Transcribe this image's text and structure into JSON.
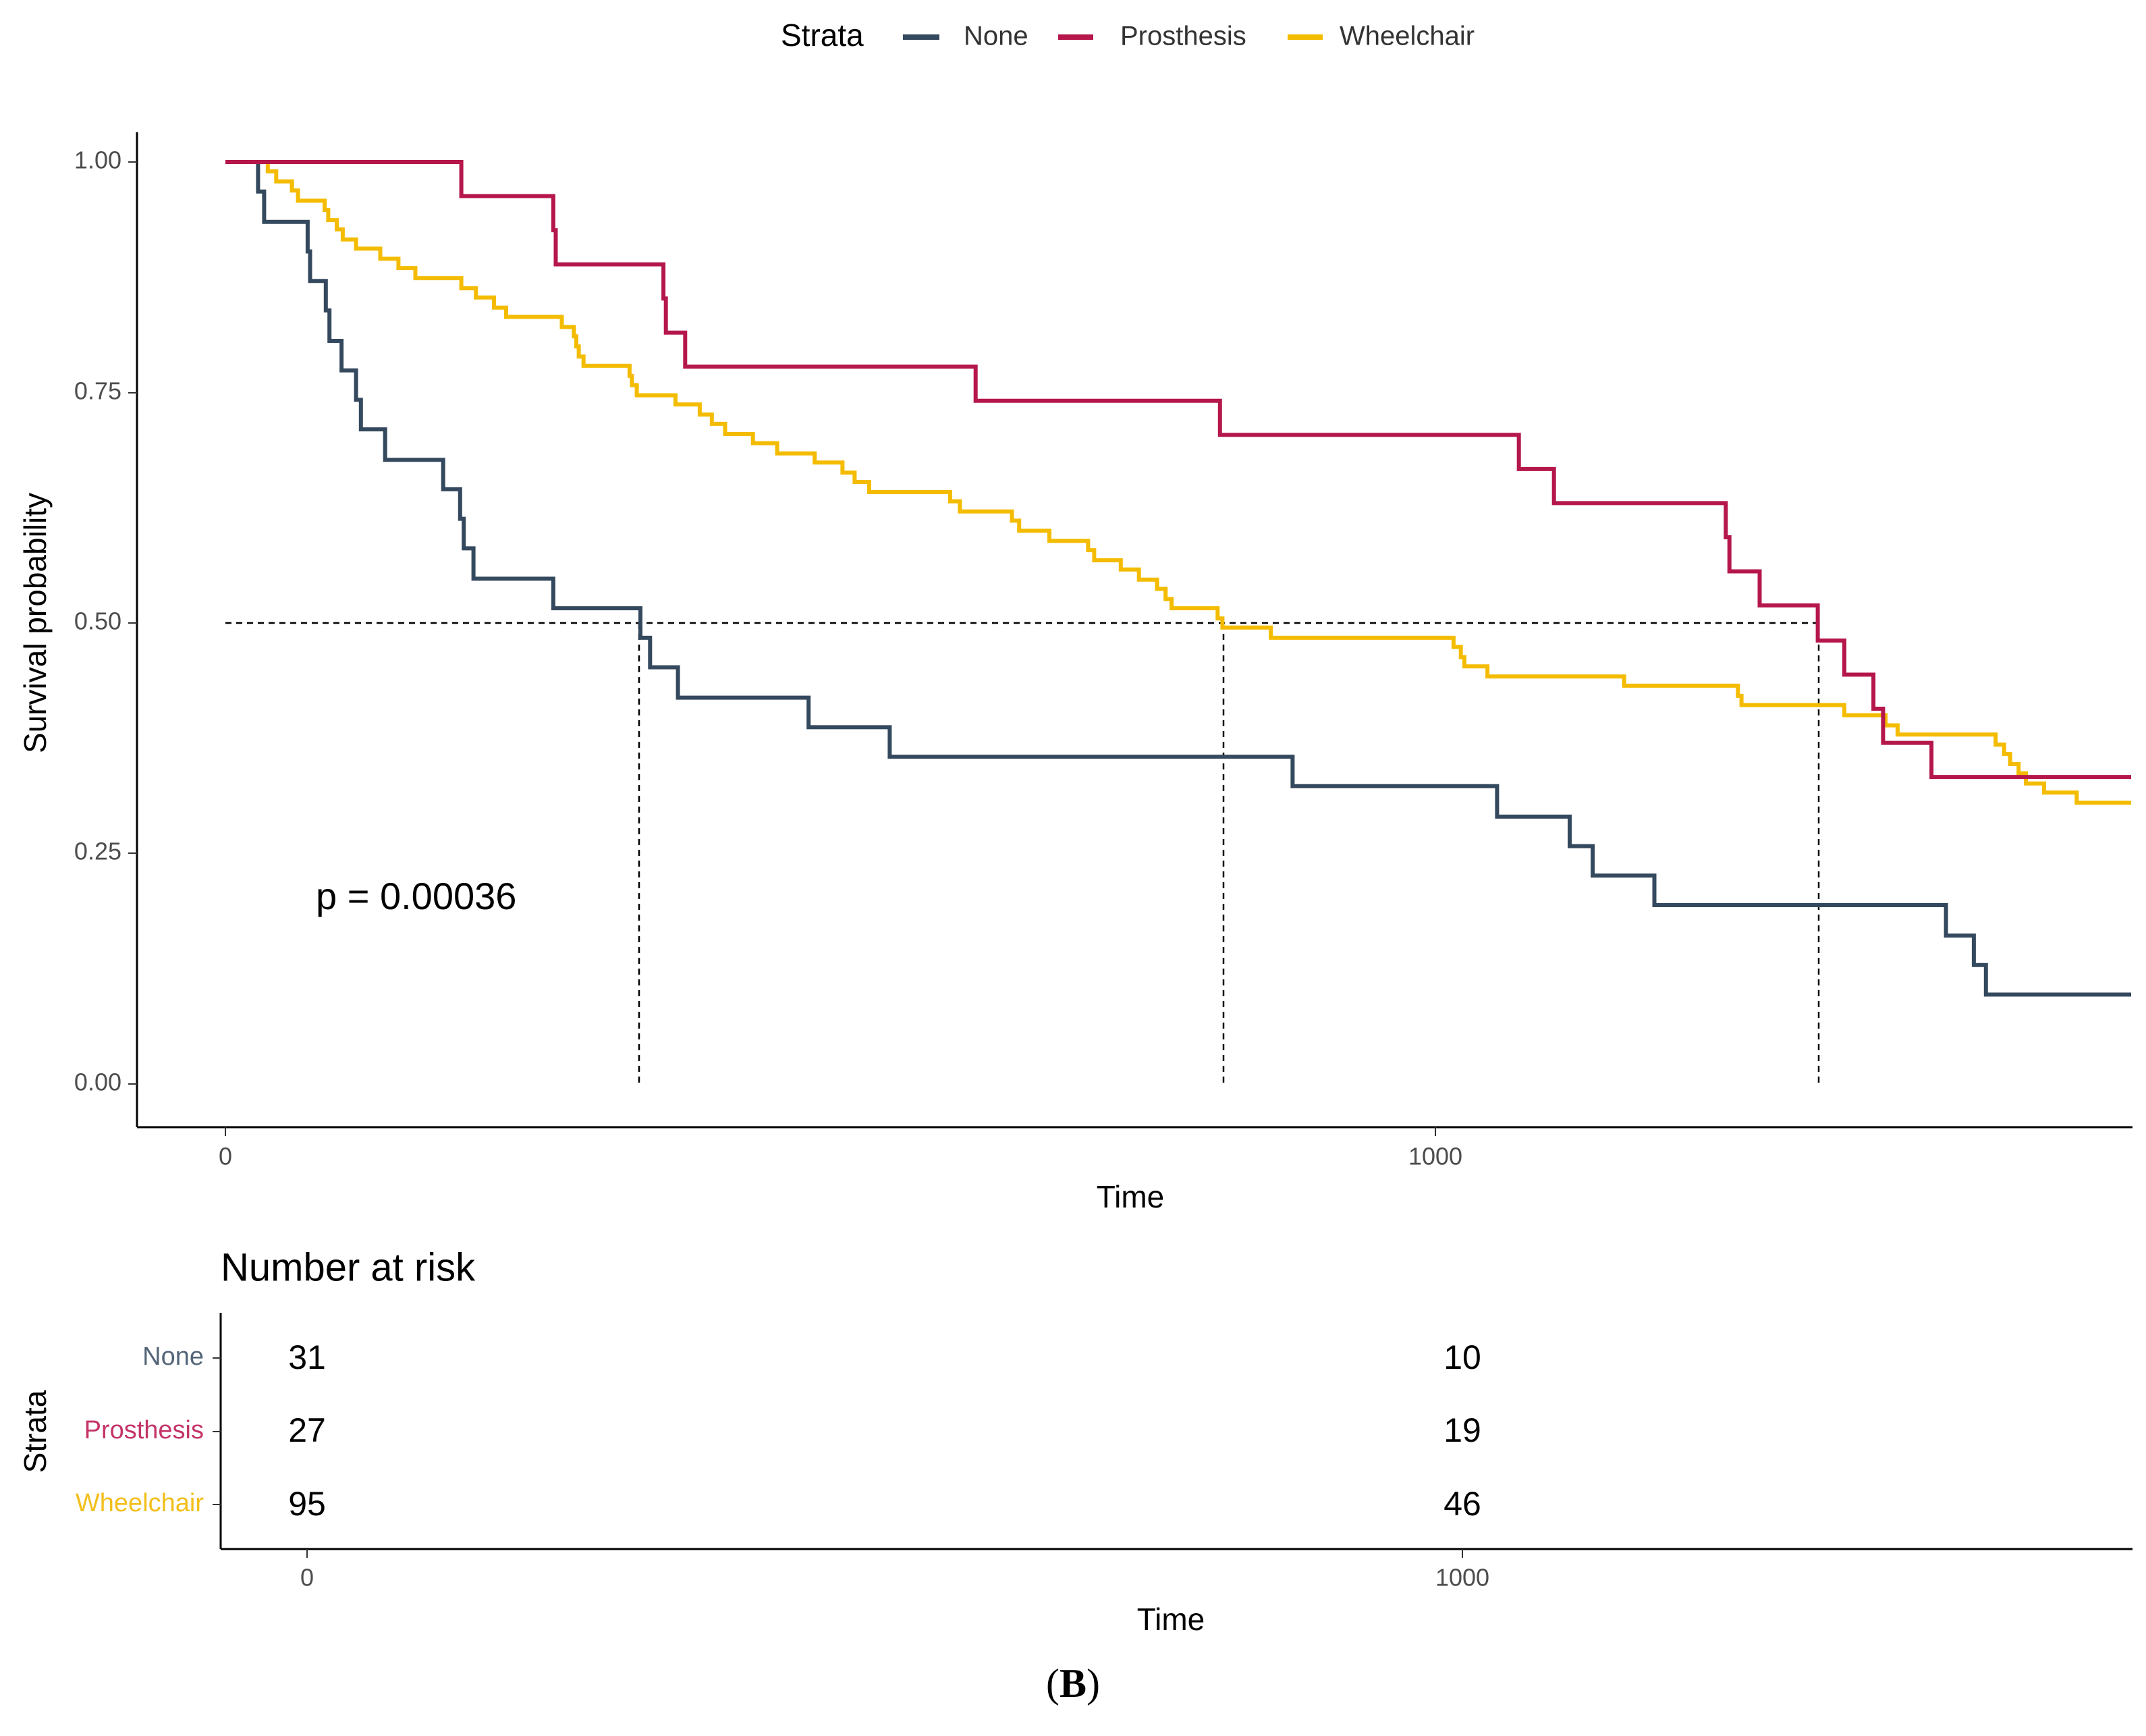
{
  "chart_data": [
    {
      "type": "line",
      "subtype": "kaplan-meier-step",
      "xlabel": "Time",
      "ylabel": "Survival probability",
      "xlim": [
        -75,
        1575
      ],
      "ylim": [
        -0.045,
        1.045
      ],
      "x_ticks": [
        0,
        1000
      ],
      "x_tick_labels": [
        "0",
        "1000"
      ],
      "y_ticks": [
        0,
        0.25,
        0.5,
        0.75,
        1.0
      ],
      "y_tick_labels": [
        "0.00",
        "0.25",
        "0.50",
        "0.75",
        "1.00"
      ],
      "legend": {
        "title": "Strata",
        "position": "top",
        "items": [
          {
            "label": "None",
            "color": "#34495e"
          },
          {
            "label": "Prosthesis",
            "color": "#b5174b"
          },
          {
            "label": "Wheelchair",
            "color": "#f4bc00"
          }
        ]
      },
      "annotation": "p = 0.00036",
      "annotation_at": [
        75,
        0.2
      ],
      "median_survival": {
        "y": 0.5,
        "x": [
          342,
          825,
          1317
        ]
      },
      "series": [
        {
          "name": "None",
          "color": "#34495e",
          "points": [
            [
              0,
              1
            ],
            [
              27,
              1
            ],
            [
              27,
              0.968
            ],
            [
              32,
              0.968
            ],
            [
              32,
              0.935
            ],
            [
              68,
              0.935
            ],
            [
              68,
              0.903
            ],
            [
              70,
              0.903
            ],
            [
              70,
              0.871
            ],
            [
              83,
              0.871
            ],
            [
              83,
              0.839
            ],
            [
              86,
              0.839
            ],
            [
              86,
              0.806
            ],
            [
              96,
              0.806
            ],
            [
              96,
              0.774
            ],
            [
              108,
              0.774
            ],
            [
              108,
              0.742
            ],
            [
              112,
              0.742
            ],
            [
              112,
              0.71
            ],
            [
              132,
              0.71
            ],
            [
              132,
              0.677
            ],
            [
              180,
              0.677
            ],
            [
              180,
              0.645
            ],
            [
              194,
              0.645
            ],
            [
              194,
              0.613
            ],
            [
              197,
              0.613
            ],
            [
              197,
              0.581
            ],
            [
              205,
              0.581
            ],
            [
              205,
              0.548
            ],
            [
              271,
              0.548
            ],
            [
              271,
              0.516
            ],
            [
              343,
              0.516
            ],
            [
              343,
              0.484
            ],
            [
              351,
              0.484
            ],
            [
              351,
              0.452
            ],
            [
              374,
              0.452
            ],
            [
              374,
              0.419
            ],
            [
              482,
              0.419
            ],
            [
              482,
              0.387
            ],
            [
              549,
              0.387
            ],
            [
              549,
              0.355
            ],
            [
              882,
              0.355
            ],
            [
              882,
              0.323
            ],
            [
              1051,
              0.323
            ],
            [
              1051,
              0.29
            ],
            [
              1111,
              0.29
            ],
            [
              1111,
              0.258
            ],
            [
              1130,
              0.258
            ],
            [
              1130,
              0.226
            ],
            [
              1181,
              0.226
            ],
            [
              1181,
              0.194
            ],
            [
              1422,
              0.194
            ],
            [
              1422,
              0.161
            ],
            [
              1445,
              0.161
            ],
            [
              1445,
              0.129
            ],
            [
              1455,
              0.129
            ],
            [
              1455,
              0.097
            ],
            [
              1575,
              0.097
            ]
          ]
        },
        {
          "name": "Prosthesis",
          "color": "#b5174b",
          "points": [
            [
              0,
              1
            ],
            [
              195,
              1
            ],
            [
              195,
              0.963
            ],
            [
              271,
              0.963
            ],
            [
              271,
              0.926
            ],
            [
              273,
              0.926
            ],
            [
              273,
              0.889
            ],
            [
              362,
              0.889
            ],
            [
              362,
              0.852
            ],
            [
              364,
              0.852
            ],
            [
              364,
              0.815
            ],
            [
              380,
              0.815
            ],
            [
              380,
              0.778
            ],
            [
              620,
              0.778
            ],
            [
              620,
              0.741
            ],
            [
              822,
              0.741
            ],
            [
              822,
              0.704
            ],
            [
              1069,
              0.704
            ],
            [
              1069,
              0.667
            ],
            [
              1098,
              0.667
            ],
            [
              1098,
              0.63
            ],
            [
              1240,
              0.63
            ],
            [
              1240,
              0.593
            ],
            [
              1243,
              0.593
            ],
            [
              1243,
              0.556
            ],
            [
              1268,
              0.556
            ],
            [
              1268,
              0.519
            ],
            [
              1316,
              0.519
            ],
            [
              1316,
              0.481
            ],
            [
              1338,
              0.481
            ],
            [
              1338,
              0.444
            ],
            [
              1362,
              0.444
            ],
            [
              1362,
              0.407
            ],
            [
              1370,
              0.407
            ],
            [
              1370,
              0.37
            ],
            [
              1410,
              0.37
            ],
            [
              1410,
              0.333
            ],
            [
              1575,
              0.333
            ]
          ]
        },
        {
          "name": "Wheelchair",
          "color": "#f4bc00",
          "points": [
            [
              0,
              1
            ],
            [
              35,
              1
            ],
            [
              35,
              0.99
            ],
            [
              42,
              0.99
            ],
            [
              42,
              0.979
            ],
            [
              55,
              0.979
            ],
            [
              55,
              0.969
            ],
            [
              60,
              0.969
            ],
            [
              60,
              0.958
            ],
            [
              82,
              0.958
            ],
            [
              82,
              0.948
            ],
            [
              85,
              0.948
            ],
            [
              85,
              0.937
            ],
            [
              92,
              0.937
            ],
            [
              92,
              0.927
            ],
            [
              97,
              0.927
            ],
            [
              97,
              0.916
            ],
            [
              108,
              0.916
            ],
            [
              108,
              0.906
            ],
            [
              128,
              0.906
            ],
            [
              128,
              0.895
            ],
            [
              143,
              0.895
            ],
            [
              143,
              0.885
            ],
            [
              157,
              0.885
            ],
            [
              157,
              0.874
            ],
            [
              195,
              0.874
            ],
            [
              195,
              0.863
            ],
            [
              207,
              0.863
            ],
            [
              207,
              0.853
            ],
            [
              222,
              0.853
            ],
            [
              222,
              0.842
            ],
            [
              232,
              0.842
            ],
            [
              232,
              0.832
            ],
            [
              278,
              0.832
            ],
            [
              278,
              0.821
            ],
            [
              288,
              0.821
            ],
            [
              288,
              0.811
            ],
            [
              290,
              0.811
            ],
            [
              290,
              0.8
            ],
            [
              292,
              0.8
            ],
            [
              292,
              0.789
            ],
            [
              296,
              0.789
            ],
            [
              296,
              0.779
            ],
            [
              334,
              0.779
            ],
            [
              334,
              0.768
            ],
            [
              336,
              0.768
            ],
            [
              336,
              0.758
            ],
            [
              340,
              0.758
            ],
            [
              340,
              0.747
            ],
            [
              372,
              0.747
            ],
            [
              372,
              0.737
            ],
            [
              392,
              0.737
            ],
            [
              392,
              0.726
            ],
            [
              402,
              0.726
            ],
            [
              402,
              0.716
            ],
            [
              413,
              0.716
            ],
            [
              413,
              0.705
            ],
            [
              436,
              0.705
            ],
            [
              436,
              0.695
            ],
            [
              456,
              0.695
            ],
            [
              456,
              0.684
            ],
            [
              487,
              0.684
            ],
            [
              487,
              0.674
            ],
            [
              510,
              0.674
            ],
            [
              510,
              0.663
            ],
            [
              520,
              0.663
            ],
            [
              520,
              0.653
            ],
            [
              532,
              0.653
            ],
            [
              532,
              0.642
            ],
            [
              599,
              0.642
            ],
            [
              599,
              0.632
            ],
            [
              607,
              0.632
            ],
            [
              607,
              0.621
            ],
            [
              650,
              0.621
            ],
            [
              650,
              0.611
            ],
            [
              656,
              0.611
            ],
            [
              656,
              0.6
            ],
            [
              681,
              0.6
            ],
            [
              681,
              0.589
            ],
            [
              713,
              0.589
            ],
            [
              713,
              0.579
            ],
            [
              718,
              0.579
            ],
            [
              718,
              0.568
            ],
            [
              740,
              0.568
            ],
            [
              740,
              0.558
            ],
            [
              755,
              0.558
            ],
            [
              755,
              0.547
            ],
            [
              770,
              0.547
            ],
            [
              770,
              0.537
            ],
            [
              777,
              0.537
            ],
            [
              777,
              0.526
            ],
            [
              782,
              0.526
            ],
            [
              782,
              0.516
            ],
            [
              820,
              0.516
            ],
            [
              820,
              0.505
            ],
            [
              824,
              0.505
            ],
            [
              824,
              0.495
            ],
            [
              864,
              0.495
            ],
            [
              864,
              0.484
            ],
            [
              1015,
              0.484
            ],
            [
              1015,
              0.474
            ],
            [
              1021,
              0.474
            ],
            [
              1021,
              0.463
            ],
            [
              1024,
              0.463
            ],
            [
              1024,
              0.453
            ],
            [
              1043,
              0.453
            ],
            [
              1043,
              0.442
            ],
            [
              1156,
              0.442
            ],
            [
              1156,
              0.432
            ],
            [
              1250,
              0.432
            ],
            [
              1250,
              0.421
            ],
            [
              1253,
              0.421
            ],
            [
              1253,
              0.411
            ],
            [
              1338,
              0.411
            ],
            [
              1338,
              0.4
            ],
            [
              1372,
              0.4
            ],
            [
              1372,
              0.389
            ],
            [
              1382,
              0.389
            ],
            [
              1382,
              0.379
            ],
            [
              1463,
              0.379
            ],
            [
              1463,
              0.368
            ],
            [
              1470,
              0.368
            ],
            [
              1470,
              0.358
            ],
            [
              1475,
              0.358
            ],
            [
              1475,
              0.347
            ],
            [
              1482,
              0.347
            ],
            [
              1482,
              0.337
            ],
            [
              1488,
              0.337
            ],
            [
              1488,
              0.326
            ],
            [
              1503,
              0.326
            ],
            [
              1503,
              0.316
            ],
            [
              1530,
              0.316
            ],
            [
              1530,
              0.305
            ],
            [
              1575,
              0.305
            ]
          ]
        }
      ]
    },
    {
      "type": "table",
      "title": "Number at risk",
      "xlabel": "Time",
      "ylabel": "Strata",
      "xlim": [
        -75,
        1575
      ],
      "x_ticks": [
        0,
        1000
      ],
      "x_tick_labels": [
        "0",
        "1000"
      ],
      "rows": [
        {
          "label": "None",
          "color": "#536578",
          "values": [
            "31",
            "10"
          ]
        },
        {
          "label": "Prosthesis",
          "color": "#c43468",
          "values": [
            "27",
            "19"
          ]
        },
        {
          "label": "Wheelchair",
          "color": "#f2bf1b",
          "values": [
            "95",
            "46"
          ]
        }
      ]
    }
  ],
  "caption": {
    "prefix": "(",
    "label": "B",
    "suffix": ")"
  }
}
